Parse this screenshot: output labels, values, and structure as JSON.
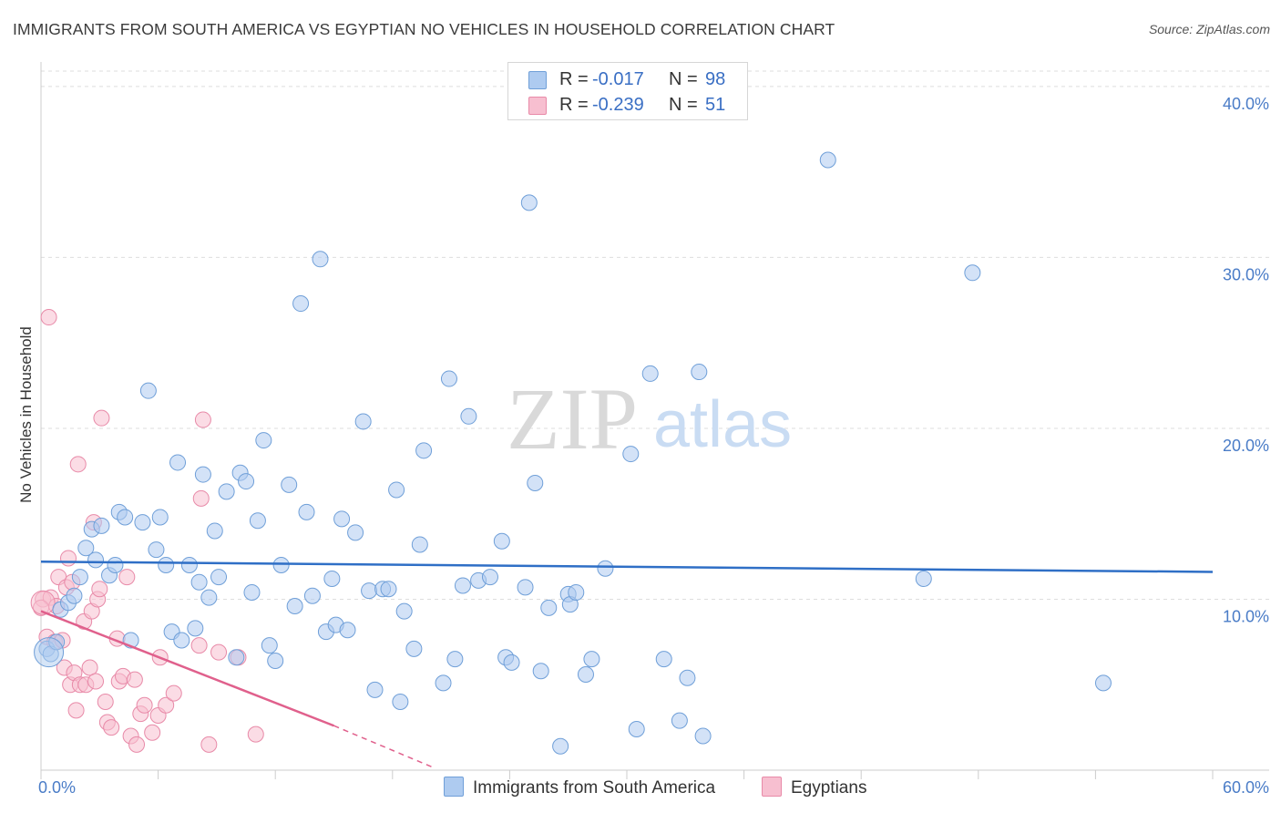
{
  "title": "IMMIGRANTS FROM SOUTH AMERICA VS EGYPTIAN NO VEHICLES IN HOUSEHOLD CORRELATION CHART",
  "source": "Source: ZipAtlas.com",
  "watermark": {
    "zip": "ZIP",
    "atlas": "atlas"
  },
  "colors": {
    "blue_fill": "#aecbf0",
    "blue_stroke": "#6f9fd8",
    "blue_line": "#2f6fc6",
    "pink_fill": "#f7bfd0",
    "pink_stroke": "#e88aa8",
    "pink_line": "#e0608c",
    "grid": "#dedede",
    "axis_text": "#4a7cc7"
  },
  "legend": {
    "series": [
      {
        "r_label": "R =",
        "r_value": "-0.017",
        "n_label": "N =",
        "n_value": "98",
        "color": "#aecbf0",
        "border": "#6f9fd8"
      },
      {
        "r_label": "R =",
        "r_value": "-0.239",
        "n_label": "N =",
        "n_value": "51",
        "color": "#f7bfd0",
        "border": "#e88aa8"
      }
    ]
  },
  "bottom_legend": [
    {
      "label": "Immigrants from South America",
      "color": "#aecbf0",
      "border": "#6f9fd8"
    },
    {
      "label": "Egyptians",
      "color": "#f7bfd0",
      "border": "#e88aa8"
    }
  ],
  "chart_data": {
    "type": "scatter",
    "title": "IMMIGRANTS FROM SOUTH AMERICA VS EGYPTIAN NO VEHICLES IN HOUSEHOLD CORRELATION CHART",
    "xlabel": "",
    "ylabel": "No Vehicles in Household",
    "xlim": [
      0,
      60
    ],
    "ylim": [
      0,
      40.9
    ],
    "x_tick_labels": [
      "0.0%",
      "60.0%"
    ],
    "y_ticks": [
      10,
      20,
      30,
      40
    ],
    "y_tick_labels": [
      "10.0%",
      "20.0%",
      "30.0%",
      "40.0%"
    ],
    "grid": true,
    "series": [
      {
        "name": "Immigrants from South America",
        "color": "#aecbf0",
        "trend": {
          "x0": 0,
          "y0": 12.2,
          "x1": 60,
          "y1": 11.6
        },
        "points": [
          [
            0.3,
            7.1
          ],
          [
            0.5,
            6.8
          ],
          [
            0.8,
            7.5
          ],
          [
            1.0,
            9.4
          ],
          [
            1.4,
            9.8
          ],
          [
            1.7,
            10.2
          ],
          [
            2.0,
            11.3
          ],
          [
            2.3,
            13.0
          ],
          [
            2.6,
            14.1
          ],
          [
            2.8,
            12.3
          ],
          [
            3.1,
            14.3
          ],
          [
            3.5,
            11.4
          ],
          [
            3.8,
            12.0
          ],
          [
            4.0,
            15.1
          ],
          [
            4.3,
            14.8
          ],
          [
            4.6,
            7.6
          ],
          [
            5.2,
            14.5
          ],
          [
            5.5,
            22.2
          ],
          [
            5.9,
            12.9
          ],
          [
            6.1,
            14.8
          ],
          [
            6.4,
            12.0
          ],
          [
            6.7,
            8.1
          ],
          [
            7.0,
            18.0
          ],
          [
            7.2,
            7.6
          ],
          [
            7.6,
            12.0
          ],
          [
            7.9,
            8.3
          ],
          [
            8.1,
            11.0
          ],
          [
            8.3,
            17.3
          ],
          [
            8.6,
            10.1
          ],
          [
            8.9,
            14.0
          ],
          [
            9.1,
            11.3
          ],
          [
            9.5,
            16.3
          ],
          [
            10.0,
            6.6
          ],
          [
            10.2,
            17.4
          ],
          [
            10.5,
            16.9
          ],
          [
            10.8,
            10.4
          ],
          [
            11.1,
            14.6
          ],
          [
            11.4,
            19.3
          ],
          [
            11.7,
            7.3
          ],
          [
            12.0,
            6.4
          ],
          [
            12.3,
            12.0
          ],
          [
            12.7,
            16.7
          ],
          [
            13.0,
            9.6
          ],
          [
            13.3,
            27.3
          ],
          [
            13.6,
            15.1
          ],
          [
            13.9,
            10.2
          ],
          [
            14.3,
            29.9
          ],
          [
            14.6,
            8.1
          ],
          [
            14.9,
            11.2
          ],
          [
            15.1,
            8.5
          ],
          [
            15.4,
            14.7
          ],
          [
            15.7,
            8.2
          ],
          [
            16.1,
            13.9
          ],
          [
            16.5,
            20.4
          ],
          [
            16.8,
            10.5
          ],
          [
            17.1,
            4.7
          ],
          [
            17.5,
            10.6
          ],
          [
            17.8,
            10.6
          ],
          [
            18.2,
            16.4
          ],
          [
            18.4,
            4.0
          ],
          [
            18.6,
            9.3
          ],
          [
            19.1,
            7.1
          ],
          [
            19.4,
            13.2
          ],
          [
            19.6,
            18.7
          ],
          [
            20.6,
            5.1
          ],
          [
            20.9,
            22.9
          ],
          [
            21.2,
            6.5
          ],
          [
            21.6,
            10.8
          ],
          [
            21.9,
            20.7
          ],
          [
            22.4,
            11.1
          ],
          [
            23.0,
            11.3
          ],
          [
            23.6,
            13.4
          ],
          [
            23.8,
            6.6
          ],
          [
            24.1,
            6.3
          ],
          [
            24.8,
            10.7
          ],
          [
            25.0,
            33.2
          ],
          [
            25.3,
            16.8
          ],
          [
            25.6,
            5.8
          ],
          [
            26.0,
            9.5
          ],
          [
            26.6,
            1.4
          ],
          [
            27.0,
            10.3
          ],
          [
            27.1,
            9.7
          ],
          [
            27.4,
            10.4
          ],
          [
            27.9,
            5.6
          ],
          [
            28.2,
            6.5
          ],
          [
            28.9,
            11.8
          ],
          [
            30.2,
            18.5
          ],
          [
            30.5,
            2.4
          ],
          [
            31.2,
            23.2
          ],
          [
            31.9,
            6.5
          ],
          [
            32.7,
            2.9
          ],
          [
            33.1,
            5.4
          ],
          [
            33.7,
            23.3
          ],
          [
            33.9,
            2.0
          ],
          [
            40.3,
            35.7
          ],
          [
            45.2,
            11.2
          ],
          [
            47.7,
            29.1
          ],
          [
            54.4,
            5.1
          ]
        ]
      },
      {
        "name": "Egyptians",
        "color": "#f7bfd0",
        "trend": {
          "x0": 0,
          "y0": 9.3,
          "x1": 15,
          "y1": 2.6
        },
        "trend_dashed": {
          "x0": 15,
          "x1": 20,
          "y1": 0.2
        },
        "points": [
          [
            0.1,
            10.0
          ],
          [
            0.3,
            7.8
          ],
          [
            0.4,
            26.5
          ],
          [
            0.5,
            10.1
          ],
          [
            0.7,
            7.5
          ],
          [
            0.8,
            9.6
          ],
          [
            0.9,
            11.3
          ],
          [
            1.1,
            7.6
          ],
          [
            1.2,
            6.0
          ],
          [
            1.3,
            10.7
          ],
          [
            1.4,
            12.4
          ],
          [
            1.5,
            5.0
          ],
          [
            1.6,
            11.0
          ],
          [
            1.7,
            5.7
          ],
          [
            1.8,
            3.5
          ],
          [
            1.9,
            17.9
          ],
          [
            2.0,
            5.0
          ],
          [
            2.2,
            8.7
          ],
          [
            2.3,
            5.0
          ],
          [
            2.5,
            6.0
          ],
          [
            2.6,
            9.3
          ],
          [
            2.7,
            14.5
          ],
          [
            2.8,
            5.2
          ],
          [
            2.9,
            10.0
          ],
          [
            3.0,
            10.6
          ],
          [
            3.1,
            20.6
          ],
          [
            3.3,
            4.0
          ],
          [
            3.4,
            2.8
          ],
          [
            3.6,
            2.5
          ],
          [
            3.9,
            7.7
          ],
          [
            4.0,
            5.2
          ],
          [
            4.2,
            5.5
          ],
          [
            4.4,
            11.3
          ],
          [
            4.6,
            2.0
          ],
          [
            4.8,
            5.3
          ],
          [
            4.9,
            1.5
          ],
          [
            5.1,
            3.3
          ],
          [
            5.3,
            3.8
          ],
          [
            5.7,
            2.2
          ],
          [
            6.0,
            3.2
          ],
          [
            6.1,
            6.6
          ],
          [
            6.4,
            3.8
          ],
          [
            6.8,
            4.5
          ],
          [
            8.1,
            7.3
          ],
          [
            8.2,
            15.9
          ],
          [
            8.3,
            20.5
          ],
          [
            8.6,
            1.5
          ],
          [
            9.1,
            6.9
          ],
          [
            10.1,
            6.6
          ],
          [
            11.0,
            2.1
          ],
          [
            0.0,
            9.5
          ]
        ]
      }
    ]
  }
}
